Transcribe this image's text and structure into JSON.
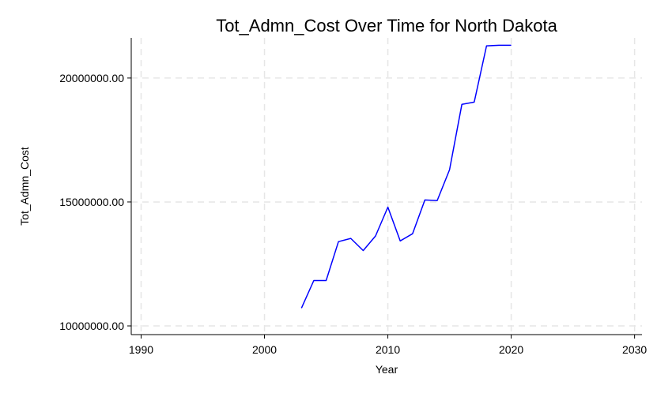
{
  "chart_data": {
    "type": "line",
    "title": "Tot_Admn_Cost Over Time for North Dakota",
    "xlabel": "Year",
    "ylabel": "Tot_Admn_Cost",
    "xlim": [
      1989.2,
      2030.6
    ],
    "ylim": [
      9650000,
      21620000
    ],
    "x_ticks": [
      1990,
      2000,
      2010,
      2020,
      2030
    ],
    "x_tick_labels": [
      "1990",
      "2000",
      "2010",
      "2020",
      "2030"
    ],
    "y_ticks": [
      10000000,
      15000000,
      20000000
    ],
    "y_tick_labels": [
      "10000000.00",
      "15000000.00",
      "20000000.00"
    ],
    "grid": true,
    "series": [
      {
        "color": "#0000ff",
        "x": [
          2003,
          2004,
          2005,
          2006,
          2007,
          2008,
          2009,
          2010,
          2011,
          2012,
          2013,
          2014,
          2015,
          2016,
          2017,
          2018,
          2019,
          2020
        ],
        "y": [
          10720000,
          11830000,
          11830000,
          13400000,
          13530000,
          13040000,
          13630000,
          14790000,
          13430000,
          13720000,
          15080000,
          15060000,
          16300000,
          18940000,
          19030000,
          21300000,
          21320000,
          21320000
        ]
      }
    ]
  }
}
